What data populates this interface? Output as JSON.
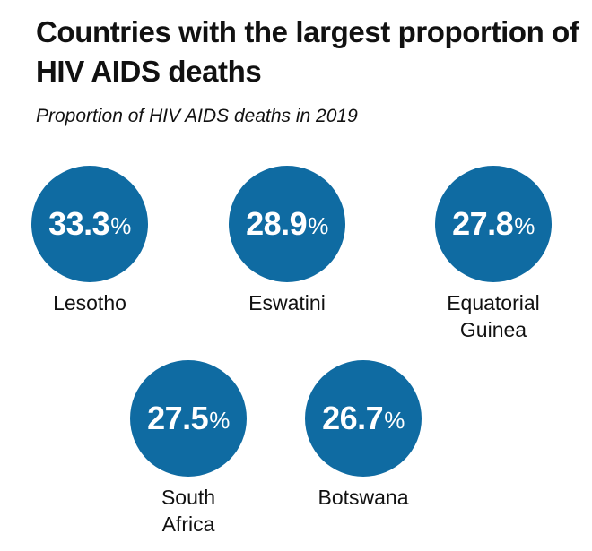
{
  "chart_data": {
    "type": "bubble",
    "title": "Countries with the largest proportion of HIV AIDS deaths",
    "subtitle": "Proportion of HIV AIDS deaths in 2019",
    "unit": "%",
    "categories": [
      "Lesotho",
      "Eswatini",
      "Equatorial Guinea",
      "South Africa",
      "Botswana"
    ],
    "values": [
      33.3,
      28.9,
      27.8,
      27.5,
      26.7
    ],
    "value_labels": [
      "33.3",
      "28.9",
      "27.8",
      "27.5",
      "26.7"
    ]
  },
  "colors": {
    "bubble": "#0f6ba2"
  }
}
